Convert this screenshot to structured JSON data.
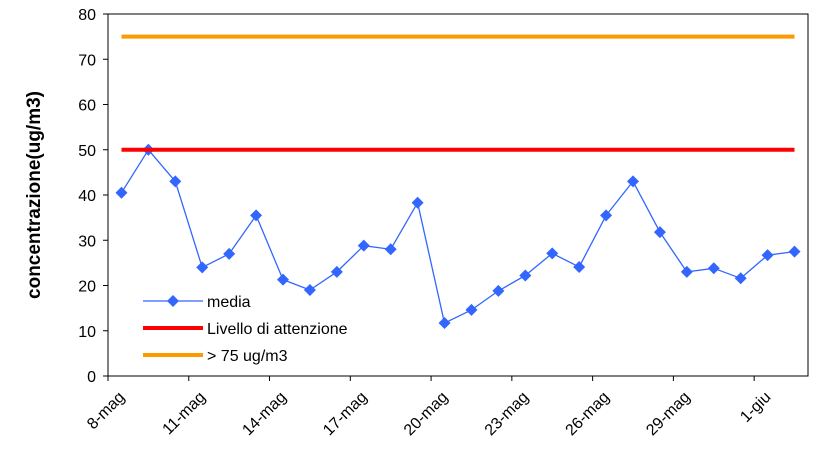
{
  "chart_data": {
    "type": "line",
    "title": "",
    "xlabel": "",
    "ylabel": "concentrazione(ug/m3)",
    "ylim": [
      0,
      80
    ],
    "y_ticks": [
      0,
      10,
      20,
      30,
      40,
      50,
      60,
      70,
      80
    ],
    "grid": false,
    "legend_position": "bottom-left",
    "x_tick_labels": [
      "8-mag",
      "11-mag",
      "14-mag",
      "17-mag",
      "20-mag",
      "23-mag",
      "26-mag",
      "29-mag",
      "1-giu"
    ],
    "x_tick_every": 3,
    "categories": [
      "8-mag",
      "9-mag",
      "10-mag",
      "11-mag",
      "12-mag",
      "13-mag",
      "14-mag",
      "15-mag",
      "16-mag",
      "17-mag",
      "18-mag",
      "19-mag",
      "20-mag",
      "21-mag",
      "22-mag",
      "23-mag",
      "24-mag",
      "25-mag",
      "26-mag",
      "27-mag",
      "28-mag",
      "29-mag",
      "30-mag",
      "31-mag",
      "1-giu",
      "2-giu"
    ],
    "series": [
      {
        "name": "media",
        "color": "#3366ff",
        "marker": "diamond",
        "values": [
          40.5,
          50,
          43,
          24,
          27,
          35.5,
          21.3,
          19,
          23,
          28.8,
          28,
          38.3,
          11.7,
          14.6,
          18.8,
          22.2,
          27.1,
          24.1,
          35.5,
          43,
          31.8,
          23,
          23.8,
          21.6,
          26.7,
          27.5
        ]
      },
      {
        "name": "Livello di attenzione",
        "color": "#ff0000",
        "marker": "none",
        "values": [
          50,
          50,
          50,
          50,
          50,
          50,
          50,
          50,
          50,
          50,
          50,
          50,
          50,
          50,
          50,
          50,
          50,
          50,
          50,
          50,
          50,
          50,
          50,
          50,
          50,
          50
        ]
      },
      {
        "name": "> 75 ug/m3",
        "color": "#ff9900",
        "marker": "none",
        "values": [
          75,
          75,
          75,
          75,
          75,
          75,
          75,
          75,
          75,
          75,
          75,
          75,
          75,
          75,
          75,
          75,
          75,
          75,
          75,
          75,
          75,
          75,
          75,
          75,
          75,
          75
        ]
      }
    ]
  }
}
